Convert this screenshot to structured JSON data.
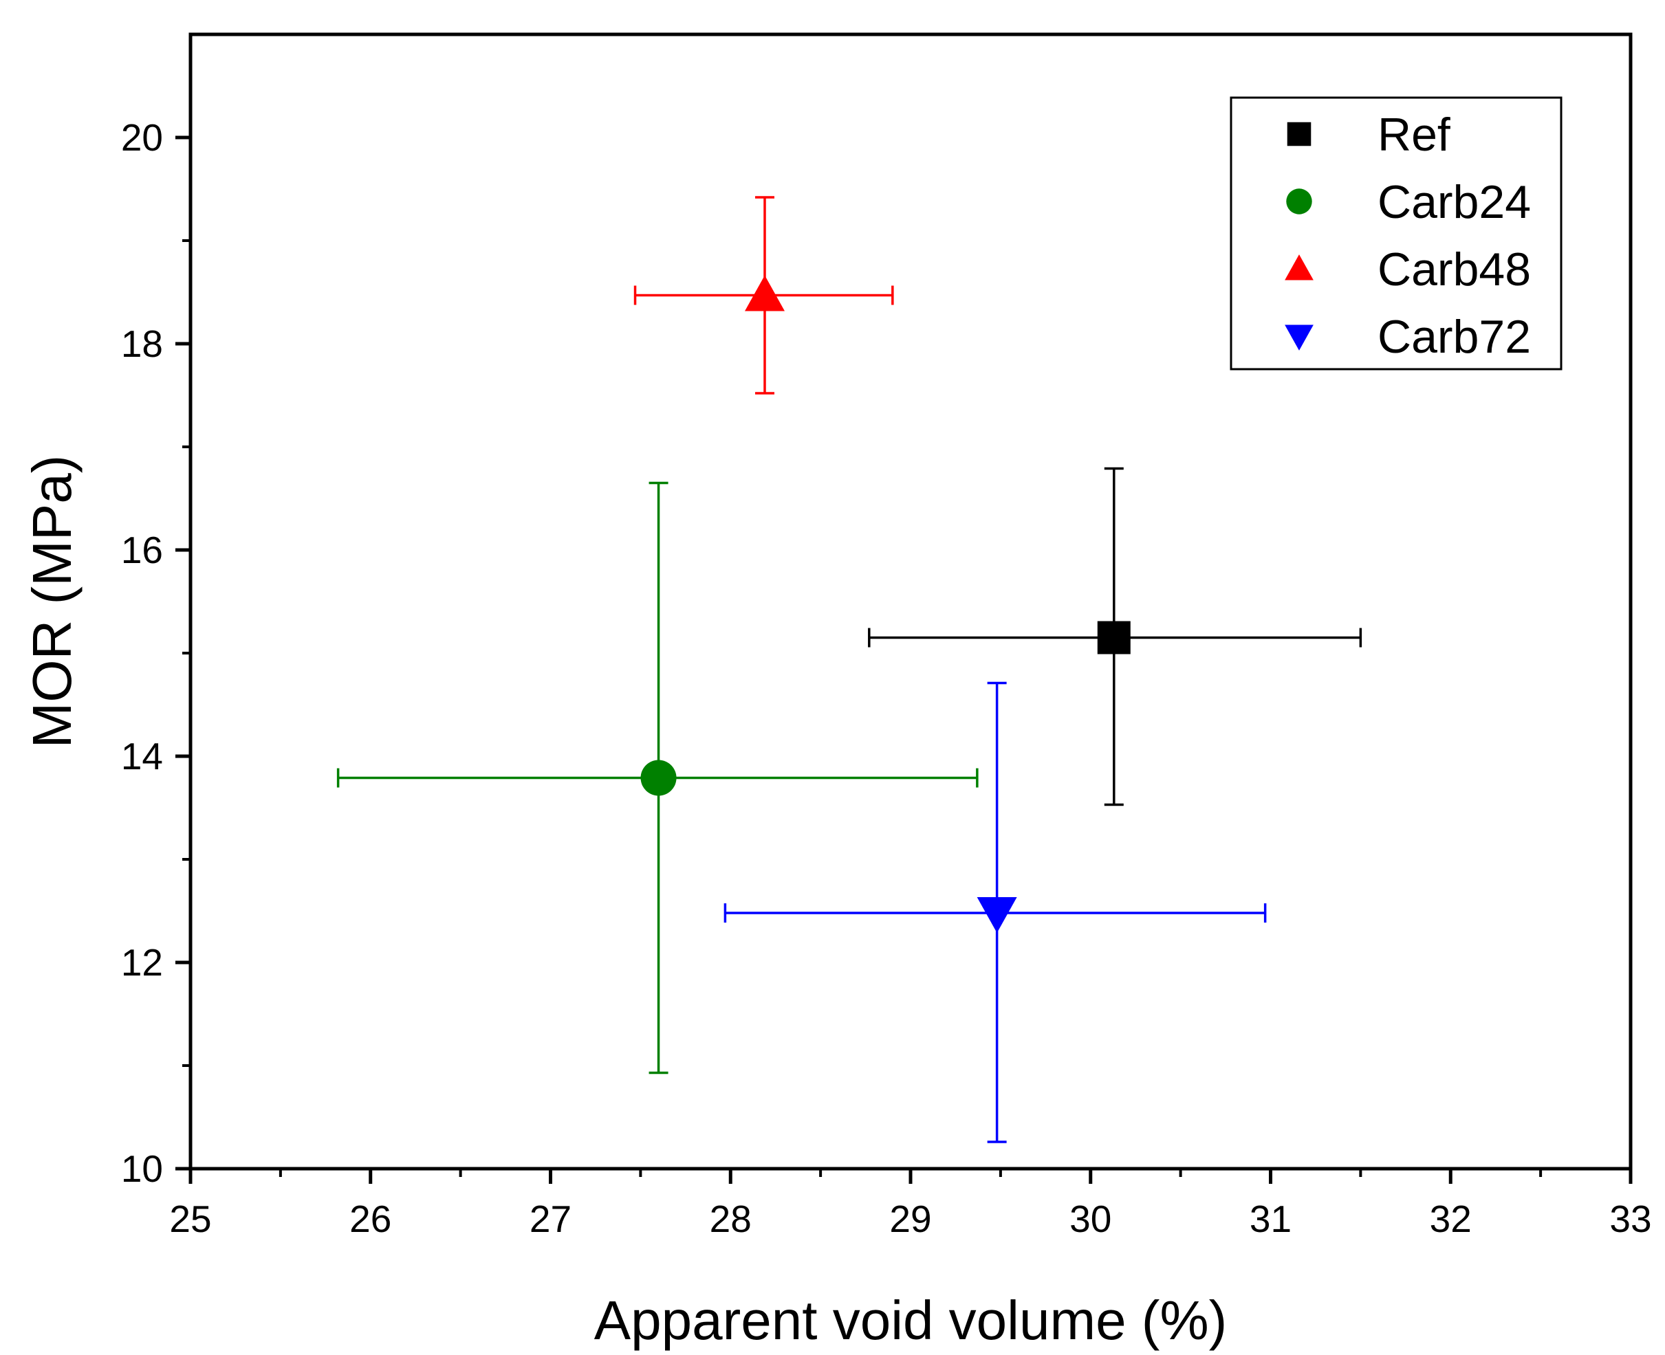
{
  "chart_data": {
    "type": "scatter",
    "title": "",
    "xlabel": "Apparent void volume (%)",
    "ylabel": "MOR (MPa)",
    "xlim": [
      25,
      33
    ],
    "ylim": [
      10,
      21
    ],
    "xticks": [
      25,
      26,
      27,
      28,
      29,
      30,
      31,
      32,
      33
    ],
    "yticks": [
      10,
      12,
      14,
      16,
      18,
      20
    ],
    "xtick_labels": [
      "25",
      "26",
      "27",
      "28",
      "29",
      "30",
      "31",
      "32",
      "33"
    ],
    "ytick_labels": [
      "10",
      "12",
      "14",
      "16",
      "18",
      "20"
    ],
    "grid": false,
    "legend_position": "top-right",
    "series": [
      {
        "name": "Ref",
        "marker": "square",
        "color": "#000000",
        "x": 30.13,
        "y": 15.15,
        "xerr": [
          28.77,
          31.5
        ],
        "yerr": [
          13.53,
          16.79
        ]
      },
      {
        "name": "Carb24",
        "marker": "circle",
        "color": "#008000",
        "x": 27.6,
        "y": 13.79,
        "xerr": [
          25.82,
          29.37
        ],
        "yerr": [
          10.93,
          16.65
        ]
      },
      {
        "name": "Carb48",
        "marker": "triangle-up",
        "color": "#ff0000",
        "x": 28.19,
        "y": 18.47,
        "xerr": [
          27.47,
          28.9
        ],
        "yerr": [
          17.52,
          19.42
        ]
      },
      {
        "name": "Carb72",
        "marker": "triangle-down",
        "color": "#0000ff",
        "x": 29.48,
        "y": 12.48,
        "xerr": [
          27.97,
          30.97
        ],
        "yerr": [
          10.26,
          14.71
        ]
      }
    ]
  }
}
